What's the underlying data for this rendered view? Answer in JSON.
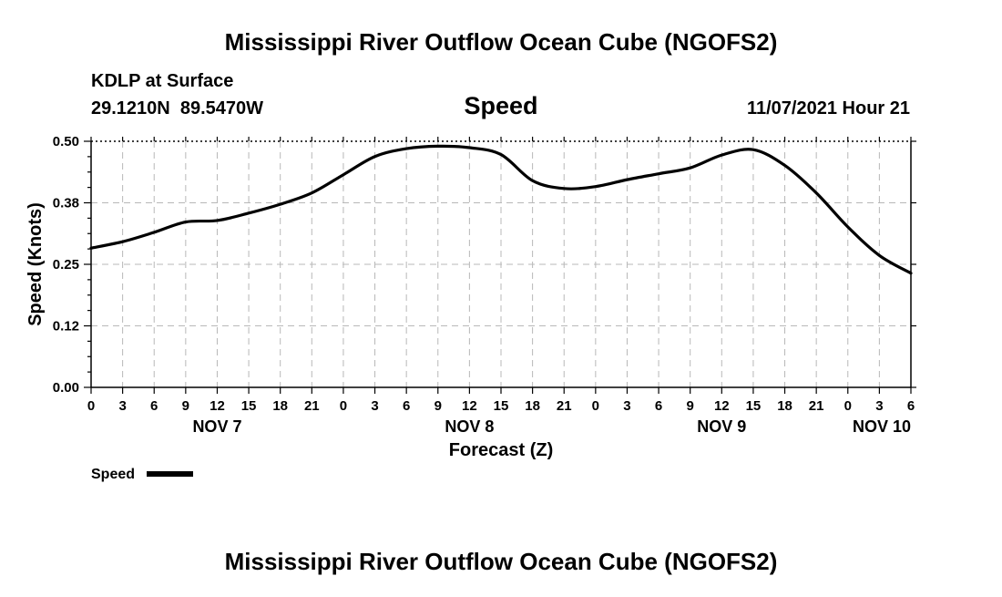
{
  "header": {
    "title": "Mississippi River Outflow Ocean Cube (NGOFS2)",
    "station": "KDLP at Surface",
    "coordinates": "29.1210N  89.5470W",
    "panel_title": "Speed",
    "timestamp": "11/07/2021 Hour 21"
  },
  "footer": {
    "title": "Mississippi River Outflow Ocean Cube (NGOFS2)"
  },
  "legend": {
    "label": "Speed",
    "color": "#000000"
  },
  "chart_data": {
    "type": "line",
    "title": "Speed",
    "xlabel": "Forecast (Z)",
    "ylabel": "Speed (Knots)",
    "xlim": [
      0,
      78
    ],
    "ylim": [
      0,
      0.5
    ],
    "grid": true,
    "legend_position": "bottom-left",
    "y_ticks": [
      0.0,
      0.125,
      0.25,
      0.375,
      0.5
    ],
    "y_tick_labels": [
      "0.00",
      "0.12",
      "0.25",
      "0.38",
      "0.50"
    ],
    "x_tick_labels": [
      "0",
      "3",
      "6",
      "9",
      "12",
      "15",
      "18",
      "21",
      "0",
      "3",
      "6",
      "9",
      "12",
      "15",
      "18",
      "21",
      "0",
      "3",
      "6",
      "9",
      "12",
      "15",
      "18",
      "21",
      "0",
      "3",
      "6"
    ],
    "day_labels": [
      {
        "label": "NOV 7",
        "hour": 12
      },
      {
        "label": "NOV 8",
        "hour": 36
      },
      {
        "label": "NOV 9",
        "hour": 60
      },
      {
        "label": "NOV 10",
        "hour": 78
      }
    ],
    "series": [
      {
        "name": "Speed",
        "color": "#000000",
        "x": [
          0,
          3,
          6,
          9,
          12,
          15,
          18,
          21,
          24,
          27,
          30,
          33,
          36,
          39,
          42,
          45,
          48,
          51,
          54,
          57,
          60,
          63,
          66,
          69,
          72,
          75,
          78
        ],
        "y": [
          0.283,
          0.296,
          0.315,
          0.336,
          0.339,
          0.354,
          0.372,
          0.395,
          0.432,
          0.469,
          0.485,
          0.49,
          0.487,
          0.473,
          0.42,
          0.404,
          0.408,
          0.422,
          0.434,
          0.446,
          0.472,
          0.483,
          0.451,
          0.395,
          0.326,
          0.268,
          0.232
        ]
      }
    ]
  }
}
